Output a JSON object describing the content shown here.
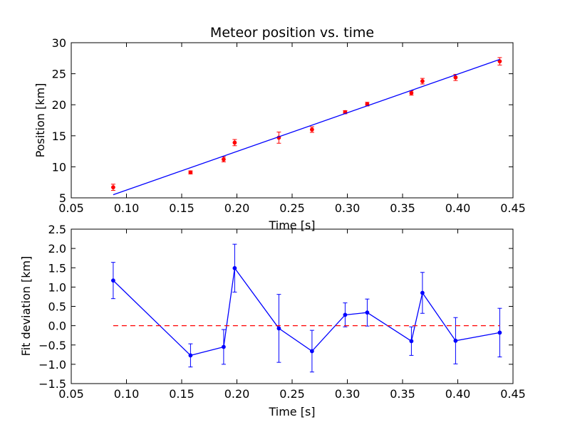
{
  "chart_data": [
    {
      "type": "scatter",
      "title": "Meteor position vs. time",
      "xlabel": "Time [s]",
      "ylabel": "Position [km]",
      "xlim": [
        0.05,
        0.45
      ],
      "ylim": [
        5,
        30
      ],
      "xticks": [
        "0.05",
        "0.10",
        "0.15",
        "0.20",
        "0.25",
        "0.30",
        "0.35",
        "0.40",
        "0.45"
      ],
      "yticks": [
        "5",
        "10",
        "15",
        "20",
        "25",
        "30"
      ],
      "grid": false,
      "series": [
        {
          "style": "markers-with-errorbars",
          "color": "#ff0000",
          "x": [
            0.088,
            0.158,
            0.188,
            0.198,
            0.238,
            0.268,
            0.298,
            0.318,
            0.358,
            0.368,
            0.398,
            0.438
          ],
          "y": [
            6.7,
            9.1,
            11.2,
            13.9,
            14.7,
            16.0,
            18.8,
            20.1,
            21.9,
            23.8,
            24.4,
            27.0
          ],
          "yerr": [
            0.5,
            0.25,
            0.4,
            0.5,
            0.9,
            0.45,
            0.25,
            0.3,
            0.35,
            0.45,
            0.5,
            0.6
          ]
        },
        {
          "style": "line",
          "color": "#0000ff",
          "x": [
            0.088,
            0.438
          ],
          "y": [
            5.5,
            27.3
          ]
        }
      ]
    },
    {
      "type": "line",
      "title": "",
      "xlabel": "Time [s]",
      "ylabel": "Fit deviation [km]",
      "xlim": [
        0.05,
        0.45
      ],
      "ylim": [
        -1.5,
        2.5
      ],
      "xticks": [
        "0.05",
        "0.10",
        "0.15",
        "0.20",
        "0.25",
        "0.30",
        "0.35",
        "0.40",
        "0.45"
      ],
      "yticks": [
        "−1.5",
        "−1.0",
        "−0.5",
        "0.0",
        "0.5",
        "1.0",
        "1.5",
        "2.0",
        "2.5"
      ],
      "grid": false,
      "series": [
        {
          "style": "line-markers-errorbars",
          "color": "#0000ff",
          "x": [
            0.088,
            0.158,
            0.188,
            0.198,
            0.238,
            0.268,
            0.298,
            0.318,
            0.358,
            0.368,
            0.398,
            0.438
          ],
          "y": [
            1.17,
            -0.77,
            -0.55,
            1.49,
            -0.07,
            -0.66,
            0.28,
            0.34,
            -0.4,
            0.85,
            -0.39,
            -0.18
          ],
          "yerr": [
            0.47,
            0.3,
            0.45,
            0.62,
            0.88,
            0.54,
            0.31,
            0.35,
            0.37,
            0.53,
            0.6,
            0.63
          ]
        },
        {
          "style": "dashed-line",
          "color": "#ff0000",
          "x": [
            0.088,
            0.438
          ],
          "y": [
            0.0,
            0.0
          ]
        }
      ]
    }
  ]
}
